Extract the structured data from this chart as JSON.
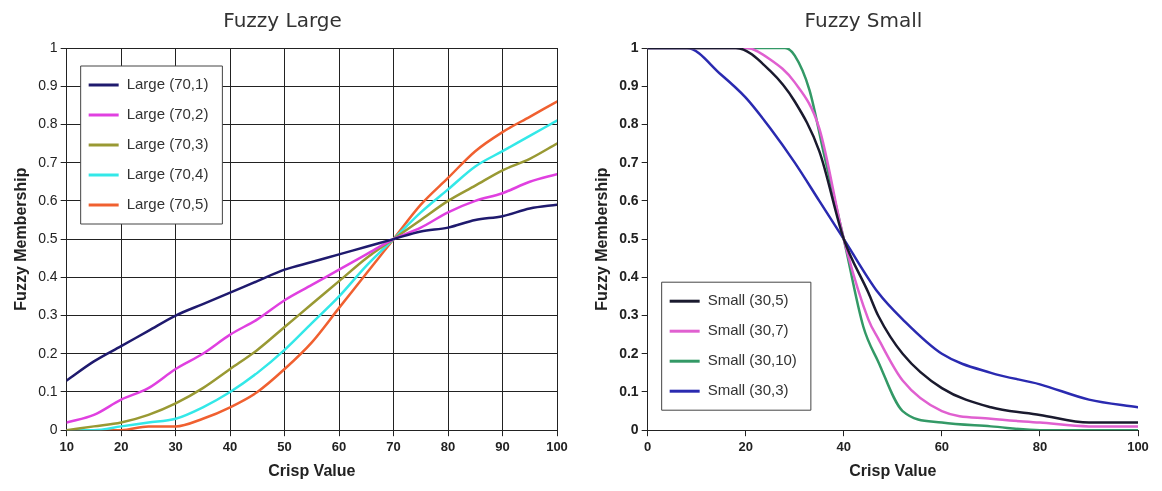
{
  "chart_data": [
    {
      "type": "line",
      "title": "Fuzzy Large",
      "xlabel": "Crisp Value",
      "ylabel": "Fuzzy Membership",
      "x": [
        10,
        15,
        20,
        25,
        30,
        35,
        40,
        45,
        50,
        55,
        60,
        65,
        70,
        75,
        80,
        85,
        90,
        95,
        100
      ],
      "xlim": [
        10,
        100
      ],
      "xticks": [
        10,
        20,
        30,
        40,
        50,
        60,
        70,
        80,
        90,
        100
      ],
      "ylim": [
        0,
        1
      ],
      "yticks": [
        0,
        0.1,
        0.2,
        0.3,
        0.4,
        0.5,
        0.6,
        0.7,
        0.8,
        0.9,
        1
      ],
      "grid": true,
      "legend": "top left",
      "marker": "none",
      "line_style": "solid",
      "series": [
        {
          "name": "Large (70,1)",
          "color": "#1f1a6e",
          "values": [
            0.13,
            0.18,
            0.22,
            0.26,
            0.3,
            0.33,
            0.36,
            0.39,
            0.42,
            0.44,
            0.46,
            0.48,
            0.5,
            0.52,
            0.53,
            0.55,
            0.56,
            0.58,
            0.59
          ]
        },
        {
          "name": "Large (70,2)",
          "color": "#e040e0",
          "values": [
            0.02,
            0.04,
            0.08,
            0.11,
            0.16,
            0.2,
            0.25,
            0.29,
            0.34,
            0.38,
            0.42,
            0.46,
            0.5,
            0.53,
            0.57,
            0.6,
            0.62,
            0.65,
            0.67
          ]
        },
        {
          "name": "Large (70,3)",
          "color": "#999933",
          "values": [
            0,
            0.01,
            0.02,
            0.04,
            0.07,
            0.11,
            0.16,
            0.21,
            0.27,
            0.33,
            0.39,
            0.45,
            0.5,
            0.55,
            0.6,
            0.64,
            0.68,
            0.71,
            0.75
          ]
        },
        {
          "name": "Large (70,4)",
          "color": "#33e8e8",
          "values": [
            0,
            0,
            0.01,
            0.02,
            0.03,
            0.06,
            0.1,
            0.15,
            0.21,
            0.28,
            0.35,
            0.43,
            0.5,
            0.57,
            0.63,
            0.69,
            0.73,
            0.77,
            0.81
          ]
        },
        {
          "name": "Large (70,5)",
          "color": "#f06030",
          "values": [
            0,
            0,
            0,
            0.01,
            0.01,
            0.03,
            0.06,
            0.1,
            0.16,
            0.23,
            0.32,
            0.41,
            0.5,
            0.59,
            0.66,
            0.73,
            0.78,
            0.82,
            0.86
          ]
        }
      ]
    },
    {
      "type": "line",
      "title": "Fuzzy Small",
      "xlabel": "Crisp Value",
      "ylabel": "Fuzzy Membership",
      "xlim": [
        0,
        100
      ],
      "xticks": [
        0,
        20,
        40,
        60,
        80,
        100
      ],
      "ylim": [
        0,
        1
      ],
      "yticks": [
        0,
        0.1,
        0.2,
        0.3,
        0.4,
        0.5,
        0.6,
        0.7,
        0.8,
        0.9,
        1
      ],
      "grid": false,
      "legend": "bottom left",
      "marker": "none",
      "line_style": "solid",
      "series": [
        {
          "name": "Small (30,5)",
          "color": "#1a1a2e",
          "x": [
            0,
            10,
            18,
            25,
            30,
            35,
            40,
            45,
            47,
            52,
            60,
            70,
            80,
            90,
            100
          ],
          "values": [
            1,
            1,
            1,
            0.94,
            0.86,
            0.73,
            0.5,
            0.36,
            0.3,
            0.2,
            0.11,
            0.06,
            0.04,
            0.02,
            0.02
          ]
        },
        {
          "name": "Small (30,7)",
          "color": "#e060d0",
          "x": [
            0,
            10,
            20,
            25,
            30,
            35,
            40,
            45,
            47,
            52,
            60,
            70,
            80,
            90,
            100
          ],
          "values": [
            1,
            1,
            1,
            0.97,
            0.91,
            0.79,
            0.5,
            0.29,
            0.24,
            0.13,
            0.05,
            0.03,
            0.02,
            0.01,
            0.01
          ]
        },
        {
          "name": "Small (30,10)",
          "color": "#339966",
          "x": [
            0,
            10,
            20,
            28,
            30,
            33,
            36,
            40,
            44,
            47,
            52,
            60,
            70,
            80,
            100
          ],
          "values": [
            1,
            1,
            1,
            1,
            0.98,
            0.89,
            0.72,
            0.5,
            0.27,
            0.18,
            0.05,
            0.02,
            0.01,
            0,
            0
          ]
        },
        {
          "name": "Small (30,3)",
          "color": "#2a2ab0",
          "x": [
            0,
            8,
            15,
            20,
            25,
            30,
            35,
            40,
            47,
            52,
            60,
            70,
            80,
            90,
            100
          ],
          "values": [
            1,
            1,
            0.93,
            0.87,
            0.79,
            0.7,
            0.6,
            0.5,
            0.36,
            0.29,
            0.2,
            0.15,
            0.12,
            0.08,
            0.06
          ]
        }
      ]
    }
  ]
}
